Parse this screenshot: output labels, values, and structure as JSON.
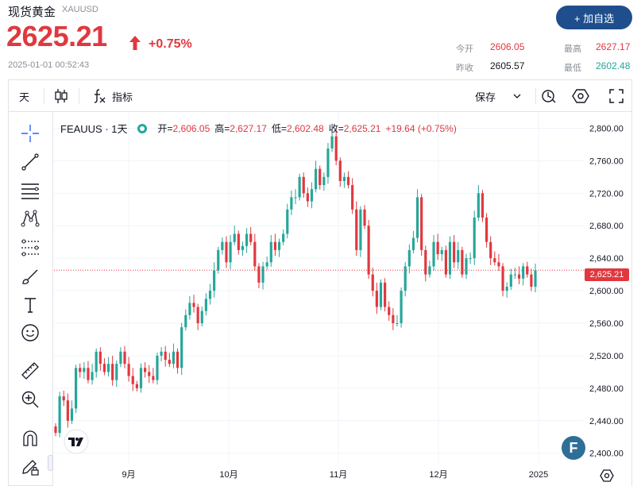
{
  "header": {
    "title": "现货黄金",
    "symbol": "XAUUSD",
    "price": "2625.21",
    "change_pct": "+0.75%",
    "timestamp": "2025-01-01 00:52:43",
    "add_button": "+ 加自选",
    "stats": {
      "open_label": "今开",
      "open": "2606.05",
      "prev_close_label": "昨收",
      "prev_close": "2605.57",
      "high_label": "最高",
      "high": "2627.17",
      "low_label": "最低",
      "low": "2602.48"
    }
  },
  "toolbar": {
    "interval": "天",
    "indicators": "指标",
    "save": "保存"
  },
  "legend": {
    "symbol": "FEAUUS · 1天",
    "open_k": "开=",
    "open_v": "2,606.05",
    "high_k": "高=",
    "high_v": "2,627.17",
    "low_k": "低=",
    "low_v": "2,602.48",
    "close_k": "收=",
    "close_v": "2,625.21",
    "change": "+19.64 (+0.75%)"
  },
  "price_tag": "2,625.21",
  "colors": {
    "up": "#26a69a",
    "down": "#e0383e",
    "accent": "#1f4e8c"
  },
  "chart_data": {
    "type": "candlestick",
    "y_ticks": [
      "2,800.00",
      "2,760.00",
      "2,720.00",
      "2,680.00",
      "2,640.00",
      "2,600.00",
      "2,560.00",
      "2,520.00",
      "2,480.00",
      "2,440.00",
      "2,400.00"
    ],
    "x_ticks": [
      "9月",
      "10月",
      "11月",
      "12月",
      "2025"
    ],
    "ylim": [
      2388,
      2820
    ],
    "last_price": 2625.21,
    "closes": [
      2425,
      2470,
      2465,
      2440,
      2455,
      2505,
      2500,
      2505,
      2490,
      2500,
      2525,
      2510,
      2500,
      2510,
      2490,
      2510,
      2525,
      2510,
      2495,
      2485,
      2480,
      2505,
      2500,
      2495,
      2490,
      2520,
      2525,
      2515,
      2510,
      2525,
      2505,
      2555,
      2570,
      2585,
      2580,
      2560,
      2575,
      2590,
      2600,
      2625,
      2650,
      2660,
      2635,
      2660,
      2670,
      2650,
      2655,
      2670,
      2660,
      2630,
      2610,
      2630,
      2635,
      2660,
      2650,
      2660,
      2670,
      2700,
      2715,
      2715,
      2740,
      2720,
      2710,
      2725,
      2750,
      2730,
      2740,
      2775,
      2790,
      2760,
      2735,
      2740,
      2730,
      2700,
      2650,
      2700,
      2680,
      2620,
      2600,
      2580,
      2610,
      2580,
      2570,
      2560,
      2560,
      2600,
      2630,
      2650,
      2665,
      2715,
      2650,
      2620,
      2630,
      2660,
      2645,
      2650,
      2620,
      2660,
      2635,
      2650,
      2620,
      2640,
      2640,
      2690,
      2720,
      2690,
      2660,
      2640,
      2635,
      2630,
      2600,
      2605,
      2620,
      2620,
      2615,
      2630,
      2620,
      2605,
      2625
    ]
  }
}
